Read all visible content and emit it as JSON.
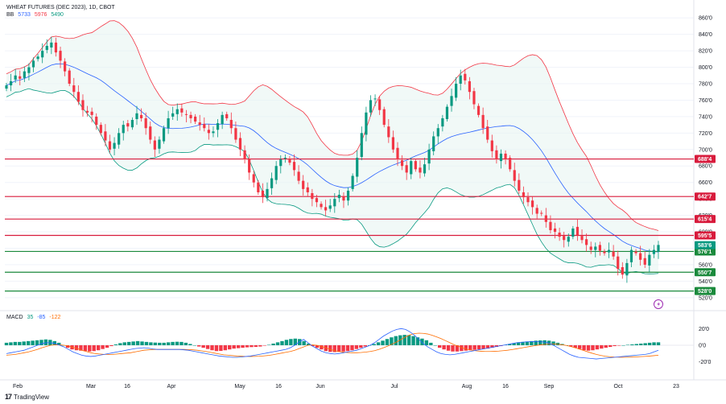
{
  "header": {
    "title": "WHEAT FUTURES (DEC 2023), 1D, CBOT",
    "bb_label": "BB",
    "bb_values": [
      "5733",
      "5976",
      "5490"
    ],
    "macd_label": "MACD",
    "macd_values": [
      "35",
      "-85",
      "-122"
    ]
  },
  "colors": {
    "up": "#089981",
    "down": "#f23645",
    "bb_upper": "#f23645",
    "bb_lower": "#089981",
    "bb_basis": "#2962ff",
    "bb_fill": "#e6f4f1",
    "level_red": "#d81b3c",
    "level_green": "#1b8a3c",
    "hist_up": "#089981",
    "hist_down": "#f23645",
    "macd_line": "#2962ff",
    "signal_line": "#ff6d00"
  },
  "brand": {
    "logo": "17",
    "name": "TradingView"
  },
  "chart_data": {
    "type": "candlestick",
    "title": "WHEAT FUTURES (DEC 2023), 1D, CBOT",
    "y_ticks": [
      "860'0",
      "840'0",
      "820'0",
      "800'0",
      "780'0",
      "760'0",
      "740'0",
      "720'0",
      "700'0",
      "680'0",
      "660'0",
      "640'0",
      "620'0",
      "600'0",
      "580'0",
      "560'0",
      "540'0",
      "520'0"
    ],
    "y_range": [
      512,
      870
    ],
    "x_ticks": [
      "Feb",
      "Mar",
      "16",
      "Apr",
      "May",
      "16",
      "Jun",
      "Jul",
      "Aug",
      "16",
      "Sep",
      "Oct",
      "23"
    ],
    "macd_ticks": [
      "20'0",
      "0'0",
      "-20'0"
    ],
    "macd_range": [
      -30,
      30
    ],
    "levels": [
      {
        "label": "688'4",
        "value": 688.5,
        "color": "red"
      },
      {
        "label": "642'7",
        "value": 642.875,
        "color": "red"
      },
      {
        "label": "615'4",
        "value": 615.5,
        "color": "red"
      },
      {
        "label": "595'5",
        "value": 595.625,
        "color": "red"
      },
      {
        "label": "576'1",
        "value": 576.125,
        "color": "green"
      },
      {
        "label": "550'7",
        "value": 550.875,
        "color": "green"
      },
      {
        "label": "528'0",
        "value": 528.0,
        "color": "green"
      }
    ],
    "last_price": {
      "label": "583'6",
      "value": 583.75
    },
    "close_series": [
      778,
      783,
      790,
      786,
      795,
      800,
      808,
      813,
      820,
      826,
      830,
      818,
      808,
      795,
      780,
      770,
      758,
      748,
      745,
      742,
      730,
      720,
      711,
      700,
      708,
      720,
      730,
      728,
      736,
      744,
      738,
      726,
      712,
      700,
      712,
      726,
      738,
      744,
      749,
      745,
      742,
      738,
      734,
      730,
      726,
      720,
      722,
      732,
      742,
      738,
      726,
      712,
      700,
      688,
      672,
      660,
      648,
      642,
      652,
      665,
      680,
      688,
      690,
      684,
      675,
      662,
      652,
      648,
      640,
      636,
      630,
      626,
      632,
      640,
      645,
      638,
      650,
      668,
      690,
      720,
      745,
      760,
      762,
      748,
      730,
      715,
      700,
      688,
      680,
      672,
      686,
      676,
      672,
      682,
      700,
      716,
      726,
      738,
      752,
      765,
      780,
      790,
      784,
      770,
      755,
      742,
      726,
      712,
      698,
      688,
      695,
      688,
      676,
      662,
      650,
      642,
      636,
      630,
      622,
      622,
      612,
      602,
      600,
      594,
      590,
      594,
      604,
      596,
      590,
      584,
      578,
      582,
      577,
      574,
      578,
      570,
      555,
      548,
      562,
      578,
      574,
      566,
      560,
      572,
      578,
      584
    ]
  },
  "macd_panel": {
    "histogram": [
      3,
      3.5,
      4,
      4,
      4.5,
      5,
      5.5,
      6,
      6.5,
      7,
      6.5,
      5,
      3,
      0,
      -3,
      -5,
      -6,
      -6.5,
      -7,
      -7.5,
      -7,
      -6,
      -4.5,
      -3,
      -1,
      1,
      2.5,
      3.5,
      4,
      4.5,
      5,
      4.5,
      4,
      3.5,
      3.2,
      3,
      3,
      3.5,
      4,
      4.2,
      4,
      3,
      1.5,
      0,
      -1.5,
      -3,
      -4.5,
      -6,
      -7,
      -6.8,
      -6,
      -5,
      -4,
      -3.5,
      -3,
      -2.5,
      -2.2,
      -2,
      -1.5,
      -0.5,
      0.5,
      2,
      3.5,
      5,
      6.5,
      7.5,
      8,
      7.5,
      5,
      2,
      -1,
      -3,
      -5,
      -7,
      -8,
      -8.2,
      -8,
      -7.5,
      -7,
      -6,
      -4.5,
      -3,
      -1.5,
      0,
      1.5,
      3.5,
      5.5,
      7.5,
      9.5,
      11,
      12,
      12.5,
      12.2,
      11,
      9.5,
      8,
      6,
      3,
      0,
      -3,
      -5,
      -6.5,
      -7.5,
      -7.5,
      -7,
      -6.5,
      -6,
      -5.5,
      -5,
      -4.5,
      -4,
      -3,
      -2,
      -1,
      0.5,
      1.5,
      2.5,
      3.5,
      4,
      4.5,
      5,
      5.5,
      5.8,
      6,
      5.5,
      4.5,
      3,
      1.5,
      0,
      -1.5,
      -3,
      -4.5,
      -6,
      -6.5,
      -6,
      -5,
      -4,
      -3,
      -2,
      -1,
      -0.5,
      0,
      0.5,
      1,
      1.5,
      2,
      2.5,
      3,
      3.5,
      3.5
    ],
    "macd_line": [
      -10,
      -9,
      -8,
      -7,
      -6,
      -4,
      -2,
      0,
      2,
      3,
      3,
      2,
      0,
      -2,
      -5,
      -8,
      -10,
      -12,
      -13,
      -13.5,
      -13,
      -12,
      -11,
      -10,
      -9,
      -8,
      -7,
      -6,
      -5,
      -4,
      -3.5,
      -3,
      -3.5,
      -4.5,
      -5,
      -5,
      -5,
      -5,
      -5,
      -5,
      -5.5,
      -6,
      -7,
      -8,
      -9,
      -10,
      -11,
      -12,
      -13,
      -13.5,
      -14,
      -14.5,
      -14.5,
      -14,
      -13.5,
      -13,
      -12,
      -11,
      -10,
      -9,
      -8,
      -7,
      -6,
      -5,
      -3,
      0,
      4,
      7,
      3,
      -1,
      -4,
      -7,
      -9,
      -10,
      -10.5,
      -10,
      -9,
      -8,
      -7,
      -6,
      -4,
      -2,
      0,
      3,
      7,
      11,
      14,
      17,
      19,
      20,
      19,
      16,
      12,
      7,
      2,
      -2,
      -5,
      -8,
      -10,
      -11,
      -11.5,
      -11,
      -10,
      -9,
      -8,
      -7,
      -6,
      -5,
      -4,
      -3,
      -2,
      -1,
      0,
      1,
      2,
      3,
      3.5,
      4,
      4.2,
      4.3,
      4.2,
      4,
      3,
      1,
      -2,
      -5,
      -8,
      -11,
      -13,
      -14.5,
      -15,
      -15.5,
      -16,
      -16.5,
      -16,
      -15.5,
      -15,
      -14.5,
      -14,
      -13.5,
      -13,
      -12.5,
      -12,
      -11.5,
      -11,
      -10,
      -8,
      -6
    ],
    "signal_line": [
      -12,
      -11.5,
      -11,
      -10,
      -9,
      -8,
      -6.5,
      -5,
      -3,
      -1.5,
      0,
      0.5,
      0.5,
      0,
      -1,
      -2.5,
      -4,
      -6,
      -7.5,
      -9,
      -10,
      -10.5,
      -11,
      -11,
      -11,
      -10.5,
      -10,
      -9.5,
      -9,
      -8,
      -7,
      -6,
      -5.5,
      -5.2,
      -5,
      -5,
      -5,
      -5,
      -5,
      -5,
      -5,
      -5.2,
      -5.5,
      -6,
      -6.8,
      -7.5,
      -8.5,
      -9.5,
      -10.5,
      -11.5,
      -12,
      -12.5,
      -13,
      -13.2,
      -13.4,
      -13.5,
      -13.4,
      -13.2,
      -12.8,
      -12.3,
      -11.5,
      -10.5,
      -9.5,
      -8.5,
      -7.5,
      -6,
      -4,
      -2,
      0,
      0.5,
      0,
      -1.5,
      -3,
      -5,
      -6.5,
      -7.5,
      -8.3,
      -8.8,
      -9,
      -9,
      -8.7,
      -8.2,
      -7.5,
      -6.5,
      -5,
      -3,
      -1,
      1.5,
      4,
      7,
      10,
      12.5,
      14,
      14.5,
      14.3,
      13.5,
      12,
      10,
      8,
      5.5,
      3,
      0.5,
      -1.5,
      -3.5,
      -5,
      -6,
      -6.8,
      -7.2,
      -7.5,
      -7.5,
      -7.3,
      -7,
      -6.5,
      -6,
      -5.2,
      -4.3,
      -3.4,
      -2.4,
      -1.5,
      -0.6,
      0.2,
      0.8,
      1.2,
      1.4,
      1.3,
      0.8,
      0,
      -1.2,
      -2.7,
      -4.3,
      -6,
      -7.8,
      -9.5,
      -11,
      -12.2,
      -13.2,
      -13.8,
      -14.2,
      -14.4,
      -14.5,
      -14.4,
      -14.2,
      -14,
      -13.7,
      -13.4,
      -13,
      -12.5,
      -12
    ],
    "ticks": [
      "20'0",
      "0'0",
      "-20'0"
    ]
  }
}
